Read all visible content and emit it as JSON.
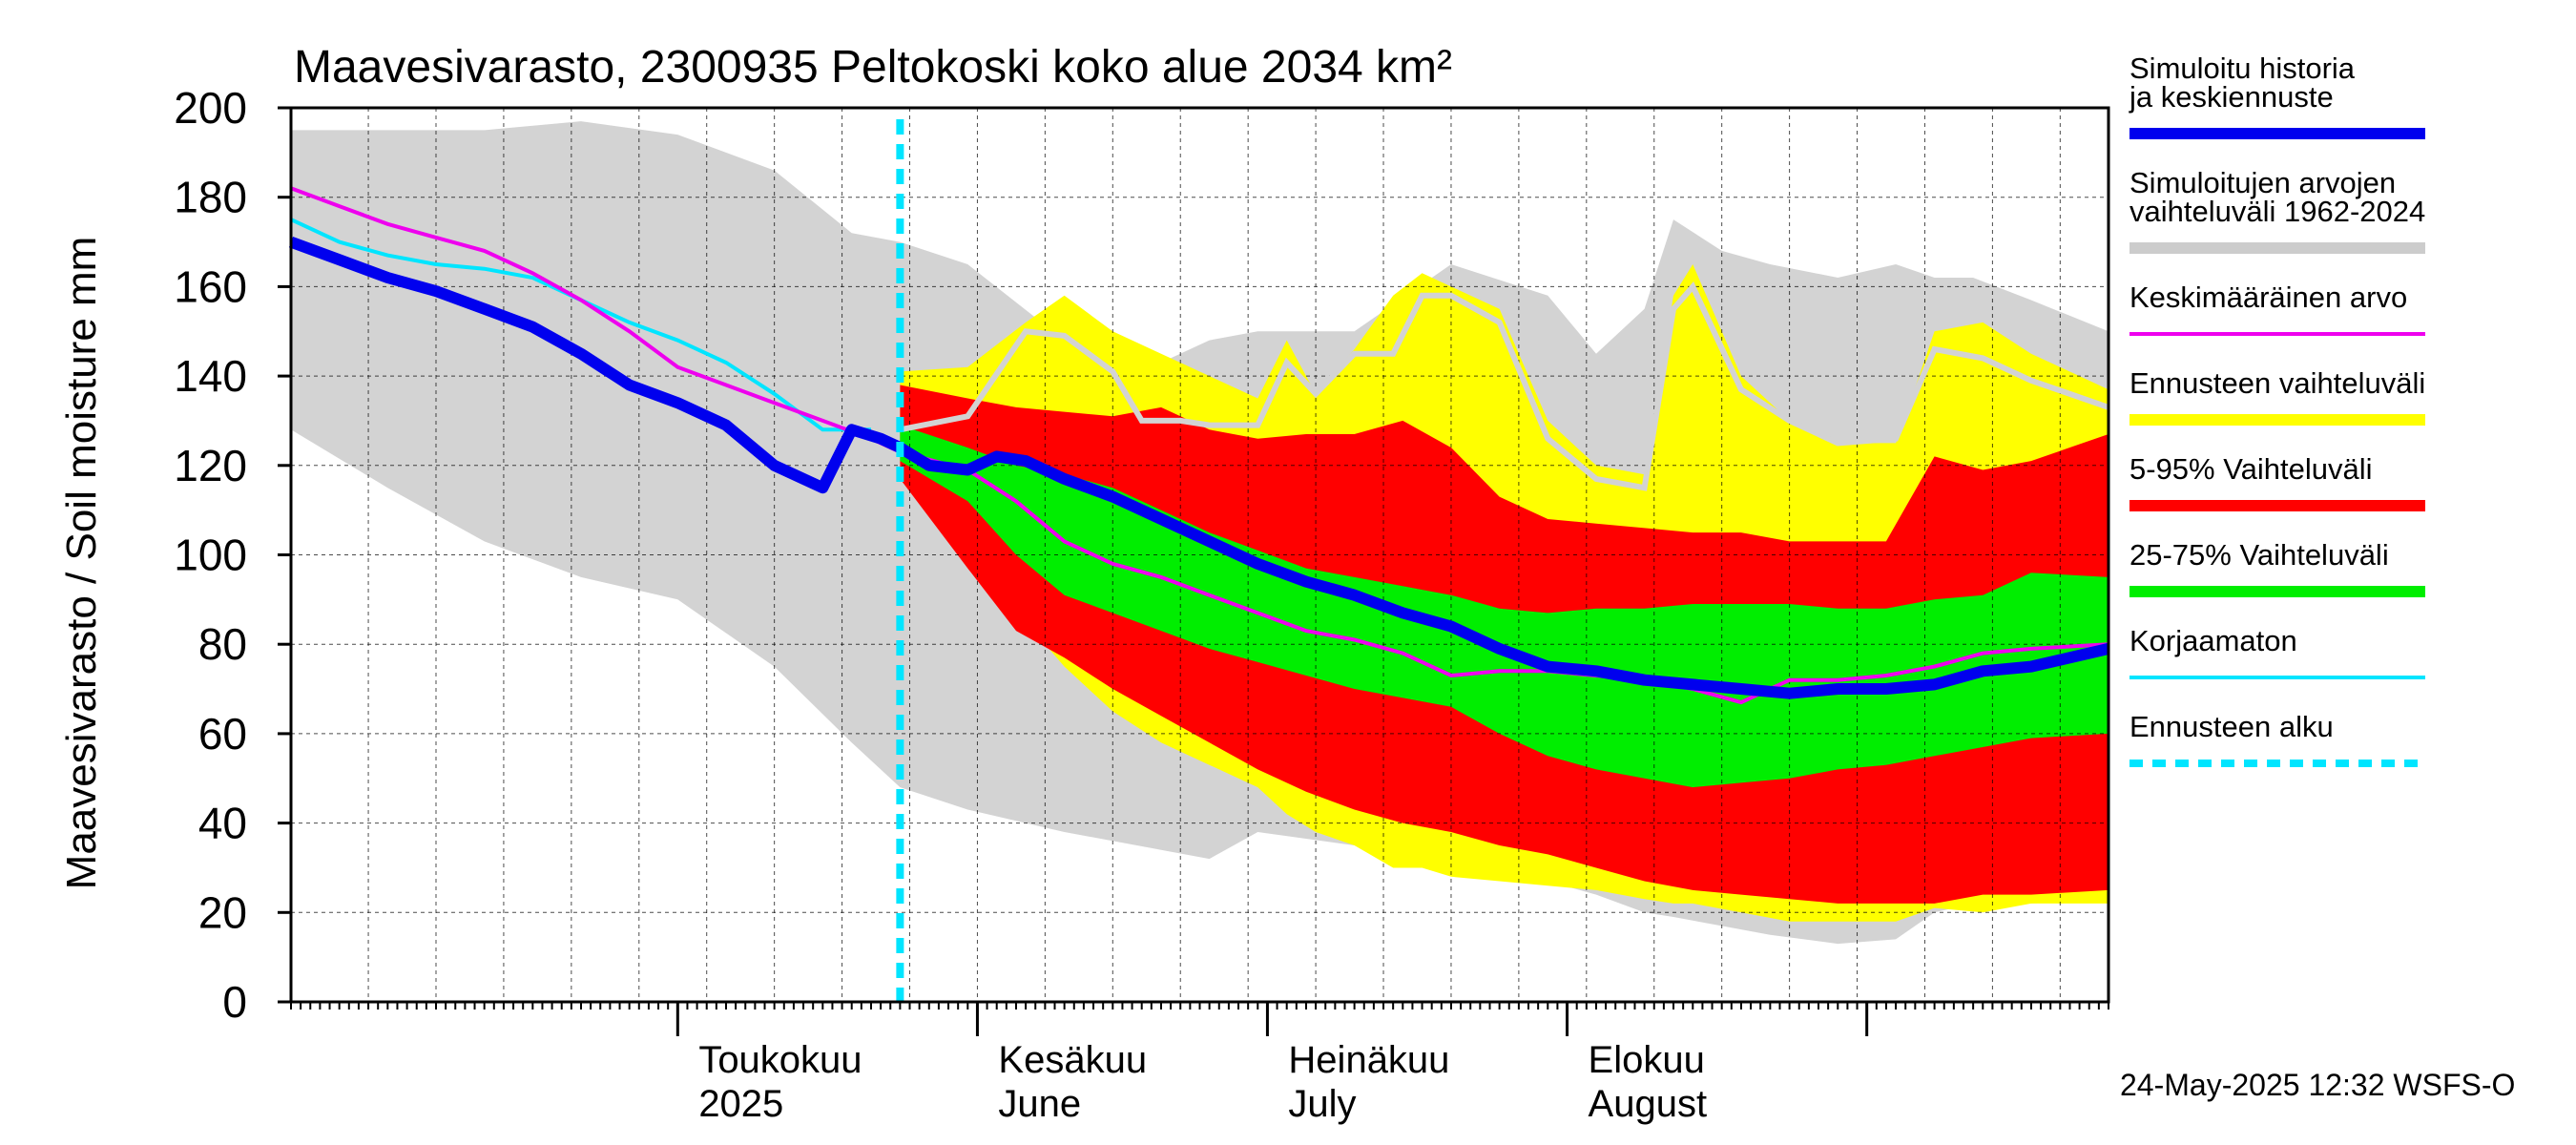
{
  "chart_data": {
    "type": "area",
    "title": "Maavesivarasto, 2300935 Peltokoski koko alue 2034 km²",
    "ylabel": "Maavesivarasto / Soil moisture   mm",
    "ylim": [
      0,
      200
    ],
    "y_ticks": [
      0,
      20,
      40,
      60,
      80,
      100,
      120,
      140,
      160,
      180,
      200
    ],
    "x_range_days": [
      -40,
      148
    ],
    "x_unit": "days from 1 May 2025",
    "forecast_start_day": 23,
    "month_labels": [
      {
        "day": 15,
        "fi": "Toukokuu",
        "en": "2025"
      },
      {
        "day": 46,
        "fi": "Kesäkuu",
        "en": "June"
      },
      {
        "day": 76,
        "fi": "Heinäkuu",
        "en": "July"
      },
      {
        "day": 107,
        "fi": "Elokuu",
        "en": "August"
      }
    ],
    "month_boundaries": [
      0,
      31,
      61,
      92,
      123
    ],
    "legend": [
      {
        "label": "Simuloitu historia ja keskiennuste",
        "color": "#0000ee",
        "style": "thick"
      },
      {
        "label": "Simuloitujen arvojen vaihteluväli 1962-2024",
        "color": "#cccccc",
        "style": "thick"
      },
      {
        "label": "Keskimääräinen arvo",
        "color": "#ee00ee",
        "style": "thin"
      },
      {
        "label": "Ennusteen vaihteluväli",
        "color": "#ffff00",
        "style": "thick"
      },
      {
        "label": "5-95% Vaihteluväli",
        "color": "#ff0000",
        "style": "thick"
      },
      {
        "label": "25-75% Vaihteluväli",
        "color": "#00ee00",
        "style": "thick"
      },
      {
        "label": "Korjaamaton",
        "color": "#00e5ff",
        "style": "thin"
      },
      {
        "label": "Ennusteen alku",
        "color": "#00e5ff",
        "style": "dashed"
      }
    ],
    "timestamp": "24-May-2025 12:32 WSFS-O",
    "series": {
      "hist_range": {
        "x": [
          -40,
          -30,
          -20,
          -10,
          0,
          10,
          18,
          23,
          30,
          40,
          50,
          55,
          60,
          70,
          80,
          90,
          95,
          100,
          103,
          108,
          113,
          120,
          126,
          130,
          134,
          140,
          148
        ],
        "hi": [
          195,
          195,
          195,
          197,
          194,
          186,
          172,
          170,
          165,
          148,
          143,
          148,
          150,
          150,
          165,
          158,
          145,
          155,
          175,
          168,
          165,
          162,
          165,
          162,
          162,
          157,
          150
        ],
        "lo": [
          128,
          115,
          103,
          95,
          90,
          75,
          58,
          48,
          43,
          38,
          34,
          32,
          38,
          35,
          32,
          27,
          24,
          20,
          19,
          17,
          15,
          13,
          14,
          20,
          22,
          22,
          23
        ]
      },
      "ens_range": {
        "x": [
          23,
          30,
          36,
          40,
          45,
          50,
          55,
          60,
          63,
          66,
          70,
          74,
          77,
          80,
          85,
          90,
          95,
          100,
          103,
          105,
          110,
          115,
          120,
          126,
          130,
          135,
          140,
          148
        ],
        "hi": [
          141,
          142,
          152,
          158,
          150,
          145,
          140,
          135,
          148,
          136,
          146,
          158,
          163,
          160,
          155,
          130,
          120,
          118,
          158,
          165,
          140,
          130,
          125,
          125,
          150,
          152,
          145,
          137
        ],
        "lo": [
          122,
          102,
          85,
          75,
          65,
          58,
          53,
          48,
          42,
          38,
          35,
          30,
          30,
          28,
          27,
          26,
          25,
          23,
          22,
          22,
          20,
          18,
          18,
          18,
          21,
          20,
          22,
          22
        ]
      },
      "p5_95": {
        "x": [
          23,
          30,
          35,
          40,
          45,
          50,
          55,
          60,
          65,
          70,
          75,
          80,
          85,
          90,
          95,
          100,
          105,
          110,
          115,
          120,
          125,
          130,
          135,
          140,
          148
        ],
        "hi": [
          138,
          135,
          133,
          132,
          131,
          133,
          128,
          126,
          127,
          127,
          130,
          124,
          113,
          108,
          107,
          106,
          105,
          105,
          103,
          103,
          103,
          122,
          119,
          121,
          127
        ],
        "lo": [
          117,
          97,
          83,
          77,
          70,
          64,
          58,
          52,
          47,
          43,
          40,
          38,
          35,
          33,
          30,
          27,
          25,
          24,
          23,
          22,
          22,
          22,
          24,
          24,
          25
        ]
      },
      "p25_75": {
        "x": [
          23,
          30,
          35,
          40,
          45,
          50,
          55,
          60,
          65,
          70,
          75,
          80,
          85,
          90,
          95,
          100,
          105,
          110,
          115,
          120,
          125,
          130,
          135,
          140,
          148
        ],
        "hi": [
          129,
          124,
          120,
          118,
          115,
          110,
          105,
          101,
          97,
          95,
          93,
          91,
          88,
          87,
          88,
          88,
          89,
          89,
          89,
          88,
          88,
          90,
          91,
          96,
          95
        ],
        "lo": [
          121,
          112,
          100,
          91,
          87,
          83,
          79,
          76,
          73,
          70,
          68,
          66,
          60,
          55,
          52,
          50,
          48,
          49,
          50,
          52,
          53,
          55,
          57,
          59,
          60
        ]
      },
      "mean": {
        "x": [
          -40,
          -35,
          -30,
          -25,
          -20,
          -15,
          -10,
          -5,
          0,
          5,
          10,
          15,
          20,
          23,
          30,
          35,
          40,
          45,
          50,
          55,
          60,
          65,
          70,
          75,
          80,
          85,
          90,
          95,
          100,
          105,
          110,
          115,
          120,
          125,
          130,
          135,
          140,
          148
        ],
        "y": [
          182,
          178,
          174,
          171,
          168,
          163,
          157,
          150,
          142,
          138,
          134,
          130,
          126,
          123,
          119,
          112,
          103,
          98,
          95,
          91,
          87,
          83,
          81,
          78,
          73,
          74,
          74,
          73,
          72,
          70,
          67,
          72,
          72,
          73,
          75,
          78,
          79,
          80
        ]
      },
      "uncorrected": {
        "x": [
          -40,
          -35,
          -30,
          -25,
          -20,
          -15,
          -10,
          -5,
          0,
          5,
          10,
          15,
          20
        ],
        "y": [
          175,
          170,
          167,
          165,
          164,
          162,
          157,
          152,
          148,
          143,
          136,
          128,
          128
        ]
      },
      "hist_median": {
        "x": [
          23,
          30,
          36,
          40,
          45,
          48,
          52,
          55,
          60,
          63,
          66,
          70,
          74,
          77,
          80,
          85,
          90,
          95,
          100,
          103,
          105,
          110,
          115,
          120,
          126,
          130,
          135,
          140,
          148
        ],
        "y": [
          128,
          131,
          150,
          149,
          141,
          130,
          130,
          129,
          129,
          143,
          136,
          145,
          145,
          158,
          158,
          152,
          126,
          117,
          115,
          155,
          160,
          137,
          130,
          125,
          126,
          146,
          144,
          139,
          133
        ]
      },
      "main": {
        "x": [
          -40,
          -35,
          -30,
          -25,
          -20,
          -15,
          -10,
          -5,
          0,
          5,
          10,
          15,
          18,
          21,
          23,
          26,
          30,
          33,
          36,
          40,
          45,
          50,
          55,
          60,
          65,
          70,
          75,
          80,
          85,
          90,
          95,
          100,
          105,
          110,
          115,
          120,
          125,
          130,
          135,
          140,
          148
        ],
        "y": [
          170,
          166,
          162,
          159,
          155,
          151,
          145,
          138,
          134,
          129,
          120,
          115,
          128,
          126,
          124,
          120,
          119,
          122,
          121,
          117,
          113,
          108,
          103,
          98,
          94,
          91,
          87,
          84,
          79,
          75,
          74,
          72,
          71,
          70,
          69,
          70,
          70,
          71,
          74,
          75,
          79
        ]
      }
    }
  }
}
